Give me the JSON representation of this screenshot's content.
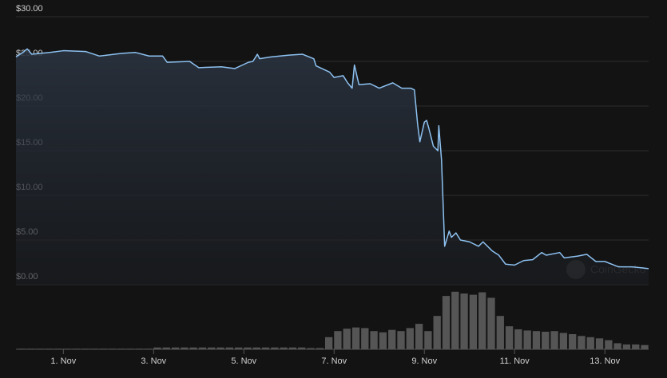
{
  "chart_data": [
    {
      "type": "line",
      "watermark": "CoinGecko",
      "x": [
        -0.05,
        0.1,
        0.2,
        0.3,
        0.7,
        1.0,
        1.5,
        1.8,
        2.3,
        2.6,
        2.9,
        3.2,
        3.3,
        3.8,
        4.0,
        4.5,
        4.8,
        5.1,
        5.2,
        5.3,
        5.35,
        5.6,
        6.0,
        6.3,
        6.55,
        6.6,
        6.9,
        7.0,
        7.2,
        7.3,
        7.4,
        7.45,
        7.55,
        7.8,
        8.0,
        8.3,
        8.5,
        8.7,
        8.78,
        8.85,
        8.9,
        9.0,
        9.05,
        9.1,
        9.2,
        9.3,
        9.32,
        9.38,
        9.45,
        9.55,
        9.6,
        9.7,
        9.8,
        10.0,
        10.2,
        10.3,
        10.5,
        10.65,
        10.8,
        11.0,
        11.2,
        11.4,
        11.6,
        11.7,
        12.0,
        12.1,
        12.4,
        12.6,
        12.8,
        13.0,
        13.3,
        13.6,
        13.8,
        13.97
      ],
      "series": [
        {
          "color": "#8dc1f0",
          "values": [
            25.5,
            26.0,
            26.4,
            25.8,
            26.0,
            26.2,
            26.1,
            25.6,
            25.9,
            26.0,
            25.6,
            25.6,
            24.9,
            25.0,
            24.3,
            24.4,
            24.2,
            24.9,
            25.0,
            25.8,
            25.3,
            25.5,
            25.7,
            25.8,
            25.3,
            24.5,
            23.8,
            23.2,
            23.4,
            22.6,
            22.0,
            24.6,
            22.4,
            22.5,
            22.0,
            22.6,
            22.0,
            22.0,
            21.8,
            18.0,
            16.0,
            18.2,
            18.4,
            17.5,
            15.5,
            15.0,
            17.8,
            14.0,
            4.3,
            6.0,
            5.3,
            5.8,
            5.0,
            4.8,
            4.3,
            4.8,
            3.8,
            3.3,
            2.3,
            2.2,
            2.7,
            2.8,
            3.6,
            3.3,
            3.6,
            3.0,
            3.2,
            3.4,
            2.6,
            2.6,
            2.0,
            2.0,
            1.9,
            1.8
          ]
        }
      ],
      "xlim": [
        -0.05,
        13.97
      ],
      "xticks": [
        {
          "value": 1,
          "label": "1. Nov"
        },
        {
          "value": 3,
          "label": "3. Nov"
        },
        {
          "value": 5,
          "label": "5. Nov"
        },
        {
          "value": 7,
          "label": "7. Nov"
        },
        {
          "value": 9,
          "label": "9. Nov"
        },
        {
          "value": 11,
          "label": "11. Nov"
        },
        {
          "value": 13,
          "label": "13. Nov"
        }
      ],
      "ylim": [
        0,
        30
      ],
      "yticks": [
        {
          "value": 0,
          "label": "$0.00"
        },
        {
          "value": 5,
          "label": "$5.00"
        },
        {
          "value": 10,
          "label": "$10.00"
        },
        {
          "value": 15,
          "label": "$15.00"
        },
        {
          "value": 20,
          "label": "$20.00"
        },
        {
          "value": 25,
          "label": "$25.00"
        },
        {
          "value": 30,
          "label": "$30.00"
        }
      ],
      "grid": true
    },
    {
      "type": "bar",
      "color": "#555555",
      "x": [
        0,
        0.2,
        0.4,
        0.6,
        0.8,
        1.0,
        1.2,
        1.4,
        1.6,
        1.8,
        2.0,
        2.2,
        2.4,
        2.6,
        2.8,
        3.0,
        3.2,
        3.4,
        3.6,
        3.8,
        4.0,
        4.2,
        4.4,
        4.6,
        4.8,
        5.0,
        5.2,
        5.4,
        5.6,
        5.8,
        6.0,
        6.2,
        6.4,
        6.6,
        6.8,
        7.0,
        7.2,
        7.4,
        7.6,
        7.8,
        8.0,
        8.2,
        8.4,
        8.6,
        8.8,
        9.0,
        9.2,
        9.4,
        9.6,
        9.8,
        10.0,
        10.2,
        10.4,
        10.6,
        10.8,
        11.0,
        11.2,
        11.4,
        11.6,
        11.8,
        12.0,
        12.2,
        12.4,
        12.6,
        12.8,
        13.0,
        13.2,
        13.4,
        13.6,
        13.8
      ],
      "values": [
        1,
        1,
        1,
        1,
        1,
        1,
        1,
        1,
        1,
        1,
        1,
        1,
        1,
        1,
        1,
        3,
        3,
        3,
        3,
        3,
        3,
        3,
        3,
        3,
        3,
        3,
        3,
        3,
        3,
        3,
        3,
        3,
        2,
        2,
        20,
        30,
        34,
        36,
        35,
        30,
        28,
        32,
        30,
        35,
        42,
        30,
        55,
        88,
        95,
        92,
        90,
        94,
        85,
        55,
        38,
        33,
        31,
        30,
        29,
        30,
        27,
        25,
        22,
        20,
        18,
        15,
        10,
        8,
        8,
        7
      ],
      "xlim": [
        -0.05,
        13.97
      ],
      "ylim": [
        0,
        100
      ]
    }
  ]
}
